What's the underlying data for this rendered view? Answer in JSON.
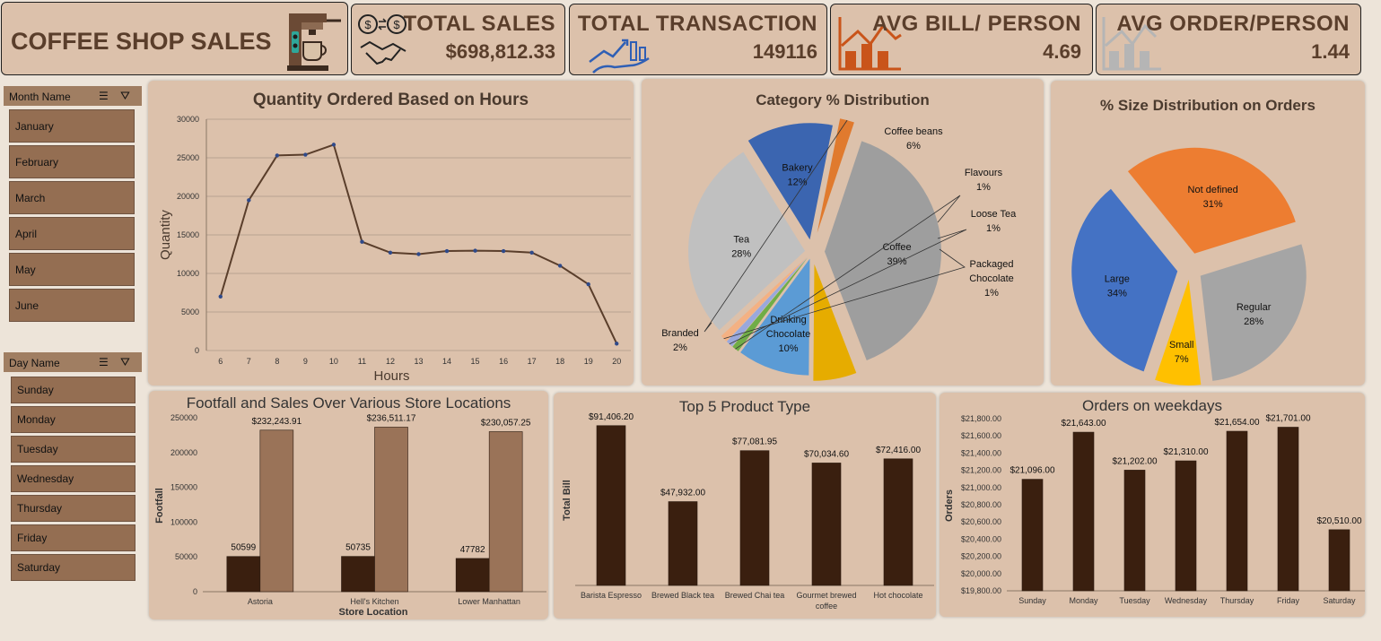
{
  "title": "COFFEE SHOP SALES",
  "kpis": {
    "total_sales": {
      "label": "TOTAL SALES",
      "value": "$698,812.33"
    },
    "total_transaction": {
      "label": "TOTAL TRANSACTION",
      "value": "149116"
    },
    "avg_bill": {
      "label": "AVG BILL/ PERSON",
      "value": "4.69"
    },
    "avg_order": {
      "label": "AVG ORDER/PERSON",
      "value": "1.44"
    }
  },
  "slicers": {
    "month": {
      "header": "Month Name",
      "items": [
        "January",
        "February",
        "March",
        "April",
        "May",
        "June"
      ]
    },
    "day": {
      "header": "Day Name",
      "items": [
        "Sunday",
        "Monday",
        "Tuesday",
        "Wednesday",
        "Thursday",
        "Friday",
        "Saturday"
      ]
    }
  },
  "colors": {
    "line": "#5a3e2b",
    "bar_dark": "#3a1f0f",
    "bar_light": "#9a7358"
  },
  "chart_data": [
    {
      "type": "line",
      "title": "Quantity Ordered Based on Hours",
      "xlabel": "Hours",
      "ylabel": "Quantity",
      "x": [
        6,
        7,
        8,
        9,
        10,
        11,
        12,
        13,
        14,
        15,
        16,
        17,
        18,
        19,
        20
      ],
      "y": [
        7000,
        19500,
        25300,
        25400,
        26700,
        14100,
        12700,
        12500,
        12900,
        12950,
        12900,
        12700,
        11000,
        8600,
        900
      ],
      "ylim": [
        0,
        30000
      ],
      "yticks": [
        "30000",
        "25000",
        "20000",
        "15000",
        "10000",
        "5000",
        "0"
      ],
      "grid": true
    },
    {
      "type": "pie",
      "title": "Category % Distribution",
      "slices": [
        {
          "label": "Coffee",
          "pct": "39%",
          "value": 39,
          "color": "#9e9e9e"
        },
        {
          "label": "Coffee beans",
          "pct": "6%",
          "value": 6,
          "color": "#e6ac00"
        },
        {
          "label": "Drinking Chocolate",
          "pct": "10%",
          "value": 10,
          "color": "#5b9bd5"
        },
        {
          "label": "Flavours",
          "pct": "1%",
          "value": 1,
          "color": "#70ad47"
        },
        {
          "label": "Loose Tea",
          "pct": "1%",
          "value": 1,
          "color": "#9aa8dc"
        },
        {
          "label": "Packaged Chocolate",
          "pct": "1%",
          "value": 1,
          "color": "#f4b183"
        },
        {
          "label": "Tea",
          "pct": "28%",
          "value": 28,
          "color": "#c0c0c0"
        },
        {
          "label": "Bakery",
          "pct": "12%",
          "value": 12,
          "color": "#3b65b0"
        },
        {
          "label": "Branded",
          "pct": "2%",
          "value": 2,
          "color": "#e07a2e"
        }
      ]
    },
    {
      "type": "pie",
      "title": "% Size Distribution on Orders",
      "slices": [
        {
          "label": "Not defined",
          "pct": "31%",
          "value": 31,
          "color": "#ed7d31"
        },
        {
          "label": "Regular",
          "pct": "28%",
          "value": 28,
          "color": "#a5a5a5"
        },
        {
          "label": "Small",
          "pct": "7%",
          "value": 7,
          "color": "#ffc000"
        },
        {
          "label": "Large",
          "pct": "34%",
          "value": 34,
          "color": "#4472c4"
        }
      ]
    },
    {
      "type": "bar",
      "title": "Footfall and Sales Over Various Store Locations",
      "xlabel": "Store Location",
      "ylabel": "Footfall",
      "categories": [
        "Astoria",
        "Hell's Kitchen",
        "Lower Manhattan"
      ],
      "series": [
        {
          "values": [
            50599,
            50735,
            47782
          ],
          "labels": [
            "50599",
            "50735",
            "47782"
          ]
        },
        {
          "values": [
            232243.91,
            236511.17,
            230057.25
          ],
          "labels": [
            "$232,243.91",
            "$236,511.17",
            "$230,057.25"
          ]
        }
      ],
      "ylim": [
        0,
        250000
      ],
      "yticks": [
        "250000",
        "200000",
        "150000",
        "100000",
        "50000",
        "0"
      ]
    },
    {
      "type": "bar",
      "title": "Top 5 Product Type",
      "ylabel": "Total Bill",
      "categories": [
        "Barista Espresso",
        "Brewed Black tea",
        "Brewed Chai tea",
        "Gourmet brewed coffee",
        "Hot chocolate"
      ],
      "values": [
        91406.2,
        47932.0,
        77081.95,
        70034.6,
        72416.0
      ],
      "labels": [
        "$91,406.20",
        "$47,932.00",
        "$77,081.95",
        "$70,034.60",
        "$72,416.00"
      ],
      "ylim": [
        0,
        100000
      ]
    },
    {
      "type": "bar",
      "title": "Orders on weekdays",
      "ylabel": "Orders",
      "categories": [
        "Sunday",
        "Monday",
        "Tuesday",
        "Wednesday",
        "Thursday",
        "Friday",
        "Saturday"
      ],
      "values": [
        21096,
        21643,
        21202,
        21310,
        21654,
        21701,
        20510
      ],
      "labels": [
        "$21,096.00",
        "$21,643.00",
        "$21,202.00",
        "$21,310.00",
        "$21,654.00",
        "$21,701.00",
        "$20,510.00"
      ],
      "ylim": [
        19800,
        21800
      ],
      "yticks": [
        "$21,800.00",
        "$21,600.00",
        "$21,400.00",
        "$21,200.00",
        "$21,000.00",
        "$20,800.00",
        "$20,600.00",
        "$20,400.00",
        "$20,200.00",
        "$20,000.00",
        "$19,800.00"
      ]
    }
  ]
}
